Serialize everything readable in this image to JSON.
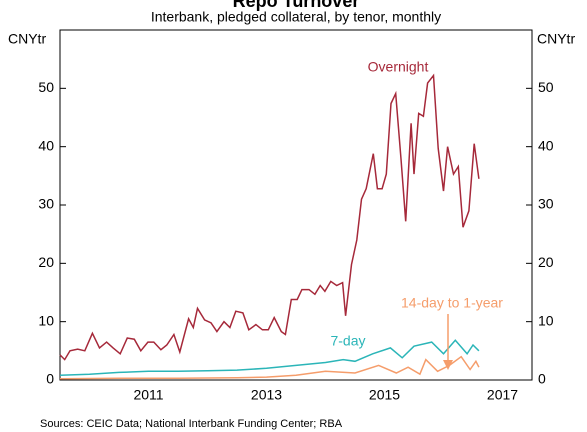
{
  "chart_data": {
    "type": "line",
    "title": "Repo Turnover",
    "subtitle": "Interbank, pledged collateral, by tenor, monthly",
    "y_label": "CNYtr",
    "y2_label": "CNYtr",
    "source": "Sources: CEIC Data; National Interbank Funding Center; RBA",
    "xlim": [
      2010,
      2018
    ],
    "xticks": [
      {
        "value": 2011.5,
        "label": "2011"
      },
      {
        "value": 2013.5,
        "label": "2013"
      },
      {
        "value": 2015.5,
        "label": "2015"
      },
      {
        "value": 2017.5,
        "label": "2017"
      }
    ],
    "ylim": [
      0,
      60
    ],
    "yticks": [
      0,
      10,
      20,
      30,
      40,
      50
    ],
    "series": [
      {
        "name": "Overnight",
        "color": "#a6293a",
        "x": [
          2010.0,
          2010.08,
          2010.17,
          2010.3,
          2010.42,
          2010.55,
          2010.67,
          2010.79,
          2010.9,
          2011.02,
          2011.14,
          2011.26,
          2011.37,
          2011.49,
          2011.59,
          2011.71,
          2011.81,
          2011.93,
          2012.03,
          2012.18,
          2012.26,
          2012.33,
          2012.45,
          2012.56,
          2012.66,
          2012.78,
          2012.88,
          2012.98,
          2013.1,
          2013.2,
          2013.32,
          2013.43,
          2013.53,
          2013.63,
          2013.75,
          2013.82,
          2013.92,
          2014.02,
          2014.1,
          2014.22,
          2014.32,
          2014.41,
          2014.49,
          2014.59,
          2014.69,
          2014.79,
          2014.84,
          2014.94,
          2015.03,
          2015.11,
          2015.19,
          2015.31,
          2015.38,
          2015.46,
          2015.53,
          2015.61,
          2015.69,
          2015.78,
          2015.86,
          2015.95,
          2016.0,
          2016.08,
          2016.16,
          2016.23,
          2016.33,
          2016.41,
          2016.5,
          2016.57,
          2016.67,
          2016.75,
          2016.83,
          2016.93,
          2017.02,
          2017.1
        ],
        "values": [
          4.3,
          3.5,
          5,
          5.3,
          5,
          8,
          5.5,
          6.5,
          5.5,
          4.5,
          7.2,
          7,
          5,
          6.5,
          6.5,
          5.2,
          6,
          7.8,
          4.8,
          10.5,
          9,
          12.3,
          10.3,
          9.8,
          8.3,
          10,
          9,
          11.8,
          11.5,
          8.6,
          9.5,
          8.6,
          8.6,
          10.7,
          8.3,
          7.8,
          13.8,
          13.8,
          15.5,
          15.5,
          14.7,
          16.2,
          15.2,
          16.9,
          16.2,
          16.7,
          11,
          19.8,
          24,
          31,
          32.8,
          38.8,
          32.8,
          32.8,
          35.3,
          47.4,
          49.1,
          37.9,
          27.2,
          44,
          35.3,
          45.7,
          45.2,
          50.9,
          52.2,
          39.7,
          32.4,
          40,
          35.3,
          36.6,
          26.2,
          29,
          40.5,
          34.5
        ]
      },
      {
        "name": "7-day",
        "color": "#2bb5b8",
        "x": [
          2010.0,
          2010.5,
          2011.0,
          2011.5,
          2012.0,
          2012.5,
          2013.0,
          2013.5,
          2014.0,
          2014.5,
          2014.8,
          2015.0,
          2015.3,
          2015.6,
          2015.8,
          2016.0,
          2016.3,
          2016.5,
          2016.7,
          2016.9,
          2017.0,
          2017.1
        ],
        "values": [
          0.8,
          1,
          1.3,
          1.5,
          1.5,
          1.6,
          1.7,
          2.0,
          2.5,
          3.0,
          3.5,
          3.2,
          4.5,
          5.5,
          3.8,
          5.8,
          6.5,
          4.5,
          6.8,
          4.5,
          6,
          5
        ]
      },
      {
        "name": "14-day to 1-year",
        "color": "#f59d6b",
        "x": [
          2010.0,
          2011.0,
          2012.0,
          2013.0,
          2013.5,
          2014.0,
          2014.5,
          2015.0,
          2015.4,
          2015.7,
          2015.9,
          2016.1,
          2016.2,
          2016.4,
          2016.6,
          2016.8,
          2016.95,
          2017.05,
          2017.1
        ],
        "values": [
          0.2,
          0.3,
          0.3,
          0.4,
          0.5,
          0.8,
          1.5,
          1.2,
          2.5,
          1.2,
          2.2,
          1.0,
          3.5,
          1.5,
          2.5,
          4.0,
          1.8,
          3.2,
          2.2
        ]
      }
    ]
  }
}
